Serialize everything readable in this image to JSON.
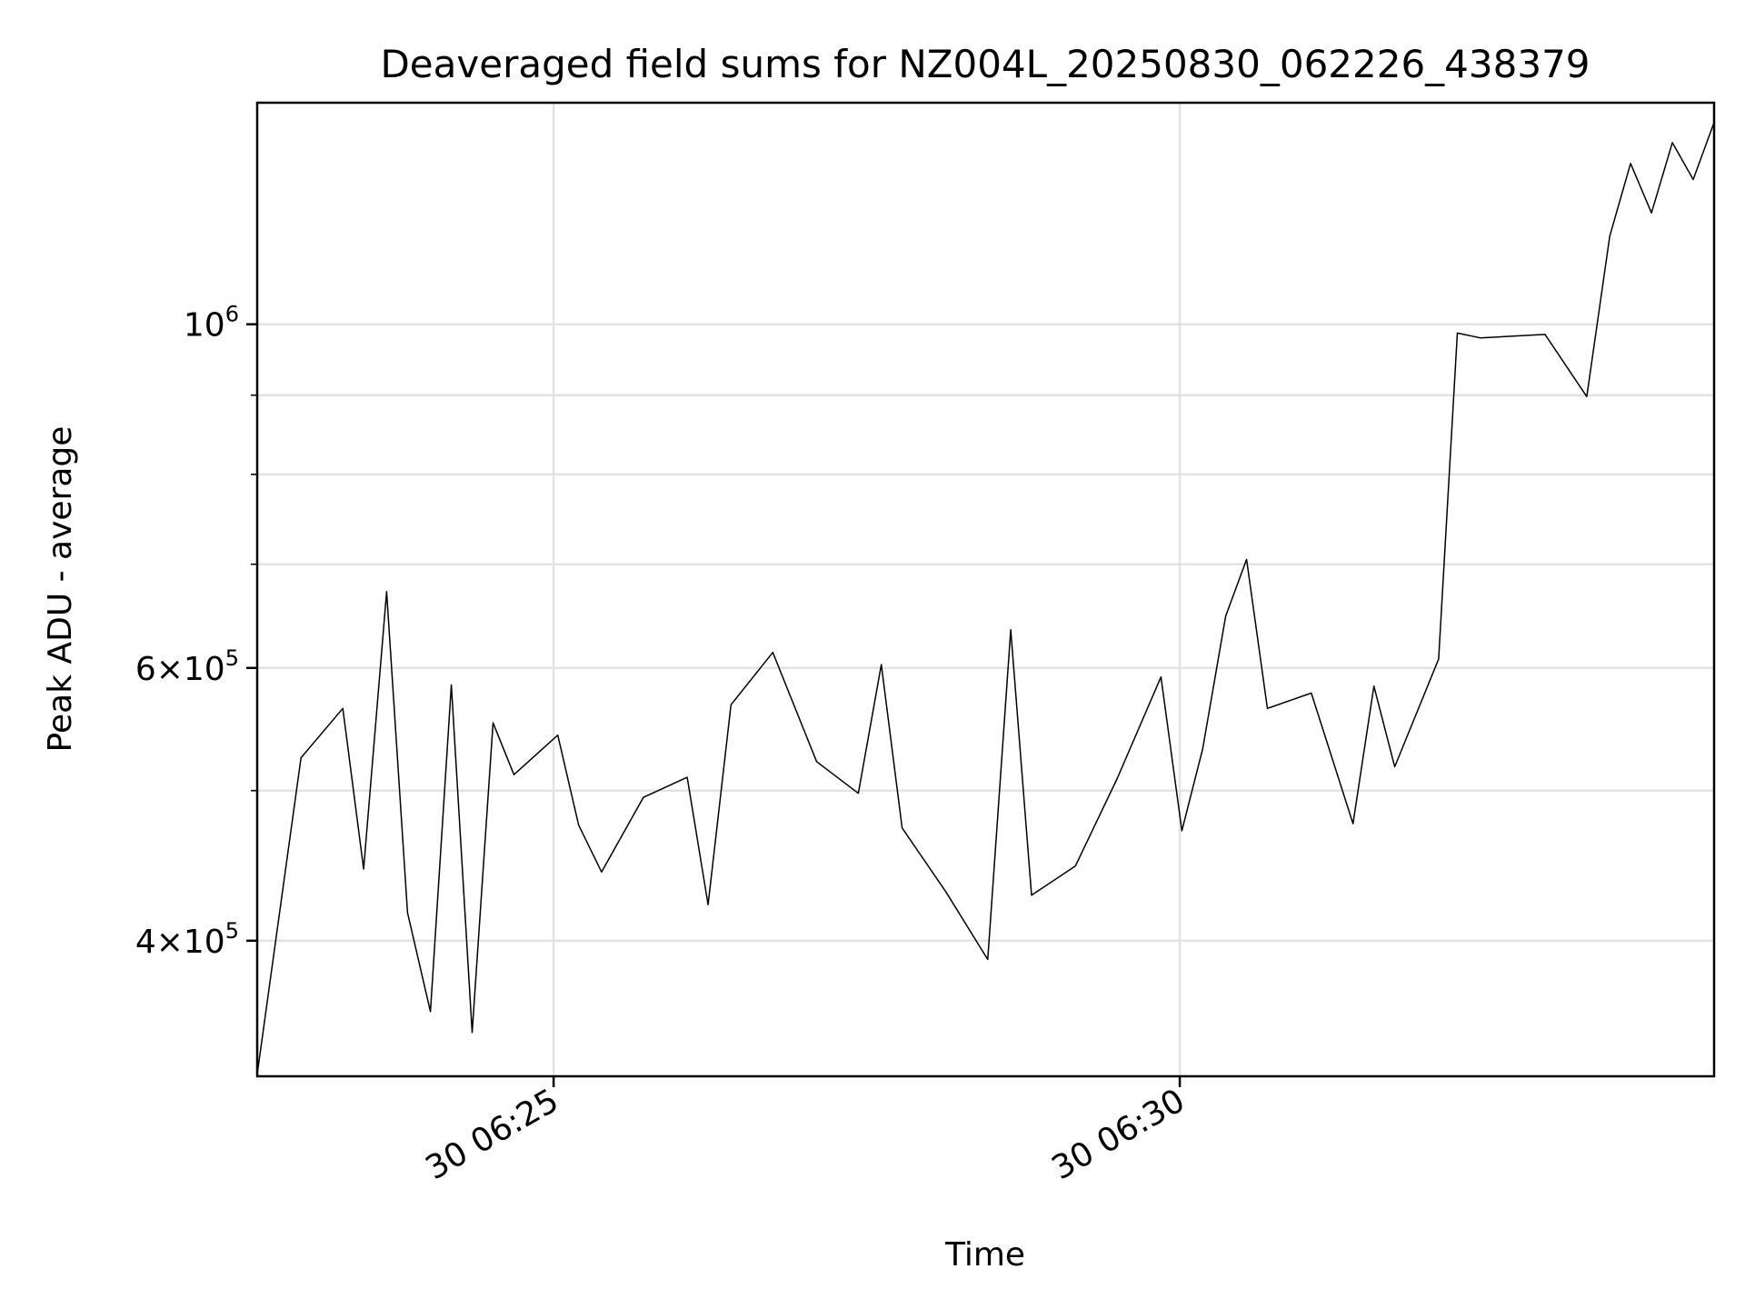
{
  "chart_data": {
    "type": "line",
    "title": "Deaveraged field sums for NZ004L_20250830_062226_438379",
    "xlabel": "Time",
    "ylabel": "Peak ADU - average",
    "y_scale": "log",
    "ylim": [
      327000,
      1390000
    ],
    "xlim": [
      "2025-08-30 06:22:38",
      "2025-08-30 06:34:16"
    ],
    "grid": true,
    "x_ticks": [
      {
        "label": "30 06:25",
        "value": "2025-08-30 06:25:00"
      },
      {
        "label": "30 06:30",
        "value": "2025-08-30 06:30:00"
      }
    ],
    "y_ticks": [
      {
        "base": "10",
        "exp": "6",
        "coef": "",
        "value": 1000000
      },
      {
        "base": "10",
        "exp": "5",
        "coef": "6",
        "value": 600000
      },
      {
        "base": "10",
        "exp": "5",
        "coef": "4",
        "value": 400000
      }
    ],
    "y_minor_ticks": [
      500000,
      700000,
      800000,
      900000
    ],
    "line_color": "#000000",
    "series": [
      {
        "x": [
          "2025-08-30 06:22:38",
          "2025-08-30 06:22:59",
          "2025-08-30 06:23:19",
          "2025-08-30 06:23:29",
          "2025-08-30 06:23:40",
          "2025-08-30 06:23:50",
          "2025-08-30 06:24:01",
          "2025-08-30 06:24:11",
          "2025-08-30 06:24:21",
          "2025-08-30 06:24:31",
          "2025-08-30 06:24:41",
          "2025-08-30 06:25:02",
          "2025-08-30 06:25:12",
          "2025-08-30 06:25:23",
          "2025-08-30 06:25:43",
          "2025-08-30 06:26:04",
          "2025-08-30 06:26:14",
          "2025-08-30 06:26:25",
          "2025-08-30 06:26:45",
          "2025-08-30 06:27:06",
          "2025-08-30 06:27:26",
          "2025-08-30 06:27:37",
          "2025-08-30 06:27:47",
          "2025-08-30 06:28:08",
          "2025-08-30 06:28:28",
          "2025-08-30 06:28:39",
          "2025-08-30 06:28:49",
          "2025-08-30 06:29:10",
          "2025-08-30 06:29:30",
          "2025-08-30 06:29:51",
          "2025-08-30 06:30:01",
          "2025-08-30 06:30:11",
          "2025-08-30 06:30:22",
          "2025-08-30 06:30:32",
          "2025-08-30 06:30:42",
          "2025-08-30 06:31:03",
          "2025-08-30 06:31:23",
          "2025-08-30 06:31:33",
          "2025-08-30 06:31:43",
          "2025-08-30 06:32:04",
          "2025-08-30 06:32:13",
          "2025-08-30 06:32:24",
          "2025-08-30 06:32:55",
          "2025-08-30 06:33:15",
          "2025-08-30 06:33:26",
          "2025-08-30 06:33:36",
          "2025-08-30 06:33:46",
          "2025-08-30 06:33:56",
          "2025-08-30 06:34:06",
          "2025-08-30 06:34:16"
        ],
        "values": [
          328000,
          525000,
          565000,
          445000,
          672000,
          417000,
          360000,
          585000,
          349000,
          553000,
          512000,
          543000,
          475000,
          443000,
          495000,
          510000,
          422000,
          568000,
          614000,
          522000,
          498000,
          603000,
          473000,
          430000,
          389000,
          635000,
          428000,
          447000,
          509000,
          592000,
          471000,
          532000,
          648000,
          705000,
          565000,
          578000,
          476000,
          584000,
          518000,
          608000,
          987000,
          980000,
          985000,
          898000,
          1140000,
          1270000,
          1180000,
          1310000,
          1240000,
          1350000
        ]
      }
    ]
  }
}
